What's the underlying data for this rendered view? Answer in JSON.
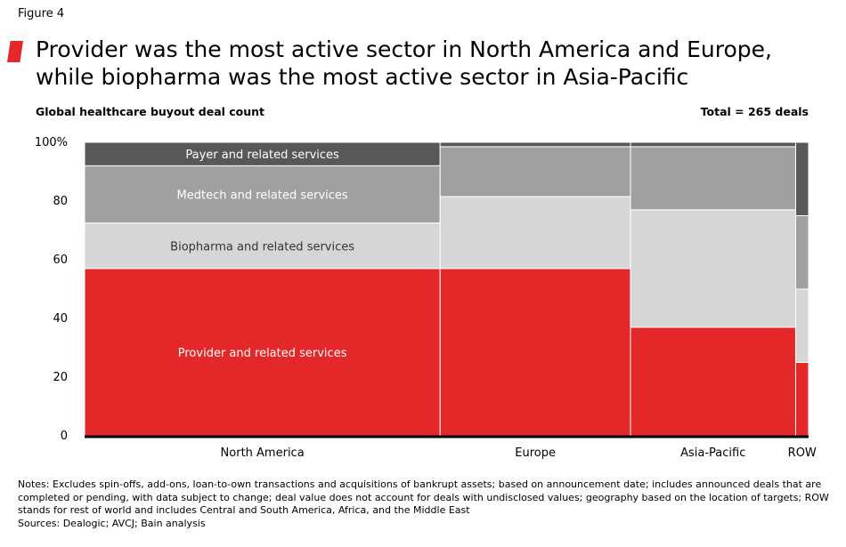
{
  "figure_label": "Figure 4",
  "headline": "Provider was the most active sector in North America and Europe, while biopharma was the most active sector in Asia-Pacific",
  "accent_color": "#e4282a",
  "chart_data": {
    "type": "marimekko",
    "title": "Global healthcare buyout deal count",
    "total_label": "Total = 265 deals",
    "yaxis": {
      "ticks": [
        "0",
        "20",
        "40",
        "60",
        "80",
        "100%"
      ],
      "tick_values": [
        0,
        20,
        40,
        60,
        80,
        100
      ],
      "ylim": [
        0,
        100
      ]
    },
    "categories": [
      "North America",
      "Europe",
      "Asia-Pacific",
      "ROW"
    ],
    "category_share": [
      49.5,
      26.5,
      23.0,
      1.8
    ],
    "series": [
      {
        "name": "Provider and related services",
        "color": "#e4282a",
        "values": [
          57,
          57,
          37,
          25
        ]
      },
      {
        "name": "Biopharma and related services",
        "color": "#d6d6d6",
        "values": [
          15.5,
          24.5,
          40,
          25
        ]
      },
      {
        "name": "Medtech and related services",
        "color": "#a0a0a0",
        "values": [
          19.5,
          17,
          21.5,
          25
        ]
      },
      {
        "name": "Payer and related services",
        "color": "#585858",
        "values": [
          8,
          1.5,
          1.5,
          25
        ]
      }
    ],
    "labeled_column": "North America"
  },
  "notes": {
    "text": "Notes: Excludes spin-offs, add-ons, loan-to-own transactions and acquisitions of bankrupt assets; based on announcement date; includes announced deals that are completed or pending, with data subject to change; deal value does not account for deals with undisclosed values; geography based on the location of targets; ROW stands for rest of world and includes Central and South America, Africa, and the Middle East",
    "sources": "Sources: Dealogic; AVCJ; Bain analysis"
  }
}
